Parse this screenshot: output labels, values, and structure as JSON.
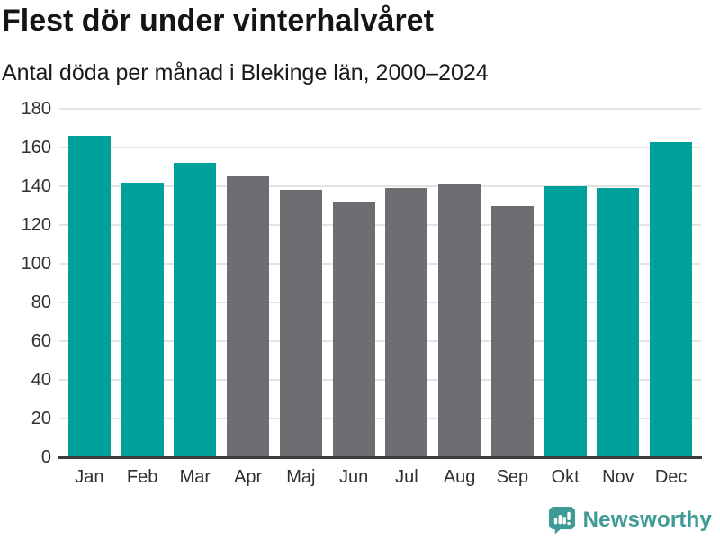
{
  "chart_data": {
    "type": "bar",
    "title": "Flest dör under vinterhalvåret",
    "subtitle": "Antal döda per månad i Blekinge län, 2000–2024",
    "categories": [
      "Jan",
      "Feb",
      "Mar",
      "Apr",
      "Maj",
      "Jun",
      "Jul",
      "Aug",
      "Sep",
      "Okt",
      "Nov",
      "Dec"
    ],
    "values": [
      166,
      142,
      152,
      145,
      138,
      132,
      139,
      141,
      130,
      140,
      139,
      163
    ],
    "highlighted_categories": [
      "Jan",
      "Feb",
      "Mar",
      "Okt",
      "Nov",
      "Dec"
    ],
    "xlabel": "",
    "ylabel": "",
    "ylim": [
      0,
      180
    ],
    "ytick_step": 20,
    "grid": true,
    "legend": "none",
    "colors": {
      "highlight_bar": "#00a09b",
      "default_bar": "#6d6d72",
      "gridline": "#e3e3e3",
      "axis_line": "#3b3b3b",
      "tick_label": "#303030"
    }
  },
  "footer": {
    "brand": "Newsworthy",
    "brand_color": "#3e9b95",
    "brand_icon": "bar-chart-speech-bubble-icon"
  }
}
